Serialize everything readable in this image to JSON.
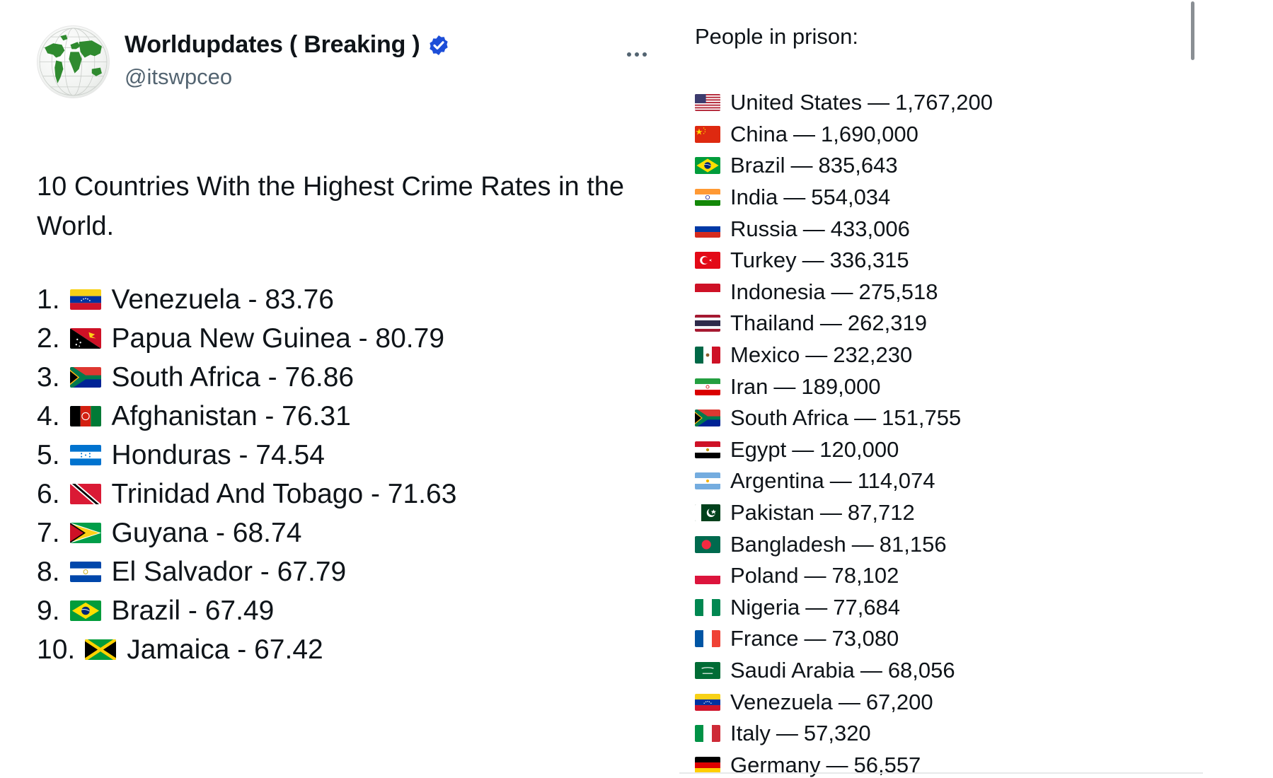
{
  "post": {
    "author": {
      "display_name": "Worldupdates ( Breaking )",
      "handle": "@itswpceo",
      "verified": true,
      "avatar_icon": "globe-map-icon"
    },
    "more_icon": "more-dots-icon",
    "text": "10 Countries With the Highest Crime Rates in the World.",
    "ranking": [
      {
        "num": "1.",
        "flag": "flag-venezuela",
        "label": "Venezuela - 83.76"
      },
      {
        "num": "2.",
        "flag": "flag-papua-new-guinea",
        "label": "Papua New Guinea - 80.79"
      },
      {
        "num": "3.",
        "flag": "flag-south-africa",
        "label": "South Africa - 76.86"
      },
      {
        "num": "4.",
        "flag": "flag-afghanistan",
        "label": "Afghanistan - 76.31"
      },
      {
        "num": "5.",
        "flag": "flag-honduras",
        "label": "Honduras - 74.54"
      },
      {
        "num": "6.",
        "flag": "flag-trinidad-and-tobago",
        "label": "Trinidad And Tobago - 71.63"
      },
      {
        "num": "7.",
        "flag": "flag-guyana",
        "label": "Guyana - 68.74"
      },
      {
        "num": "8.",
        "flag": "flag-el-salvador",
        "label": "El Salvador - 67.79"
      },
      {
        "num": "9.",
        "flag": "flag-brazil",
        "label": "Brazil - 67.49"
      },
      {
        "num": "10.",
        "flag": "flag-jamaica",
        "label": "Jamaica - 67.42"
      }
    ]
  },
  "prison_panel": {
    "title": "People in prison:",
    "separator": "—",
    "items": [
      {
        "flag": "flag-united-states",
        "country": "United States",
        "count": "1,767,200"
      },
      {
        "flag": "flag-china",
        "country": "China",
        "count": "1,690,000"
      },
      {
        "flag": "flag-brazil",
        "country": "Brazil",
        "count": "835,643"
      },
      {
        "flag": "flag-india",
        "country": "India",
        "count": "554,034"
      },
      {
        "flag": "flag-russia",
        "country": "Russia",
        "count": "433,006"
      },
      {
        "flag": "flag-turkey",
        "country": "Turkey",
        "count": "336,315"
      },
      {
        "flag": "flag-indonesia",
        "country": "Indonesia",
        "count": "275,518"
      },
      {
        "flag": "flag-thailand",
        "country": "Thailand",
        "count": "262,319"
      },
      {
        "flag": "flag-mexico",
        "country": "Mexico",
        "count": "232,230"
      },
      {
        "flag": "flag-iran",
        "country": "Iran",
        "count": "189,000"
      },
      {
        "flag": "flag-south-africa",
        "country": "South Africa",
        "count": "151,755"
      },
      {
        "flag": "flag-egypt",
        "country": "Egypt",
        "count": "120,000"
      },
      {
        "flag": "flag-argentina",
        "country": "Argentina",
        "count": "114,074"
      },
      {
        "flag": "flag-pakistan",
        "country": "Pakistan",
        "count": "87,712"
      },
      {
        "flag": "flag-bangladesh",
        "country": "Bangladesh",
        "count": "81,156"
      },
      {
        "flag": "flag-poland",
        "country": "Poland",
        "count": "78,102"
      },
      {
        "flag": "flag-nigeria",
        "country": "Nigeria",
        "count": "77,684"
      },
      {
        "flag": "flag-france",
        "country": "France",
        "count": "73,080"
      },
      {
        "flag": "flag-saudi-arabia",
        "country": "Saudi Arabia",
        "count": "68,056"
      },
      {
        "flag": "flag-venezuela",
        "country": "Venezuela",
        "count": "67,200"
      },
      {
        "flag": "flag-italy",
        "country": "Italy",
        "count": "57,320"
      },
      {
        "flag": "flag-germany",
        "country": "Germany",
        "count": "56,557"
      }
    ]
  },
  "colors": {
    "text": "#0f1419",
    "secondary_text": "#536471",
    "verified_badge": "#1d4ed8",
    "scrollbar": "#8a8f94"
  }
}
